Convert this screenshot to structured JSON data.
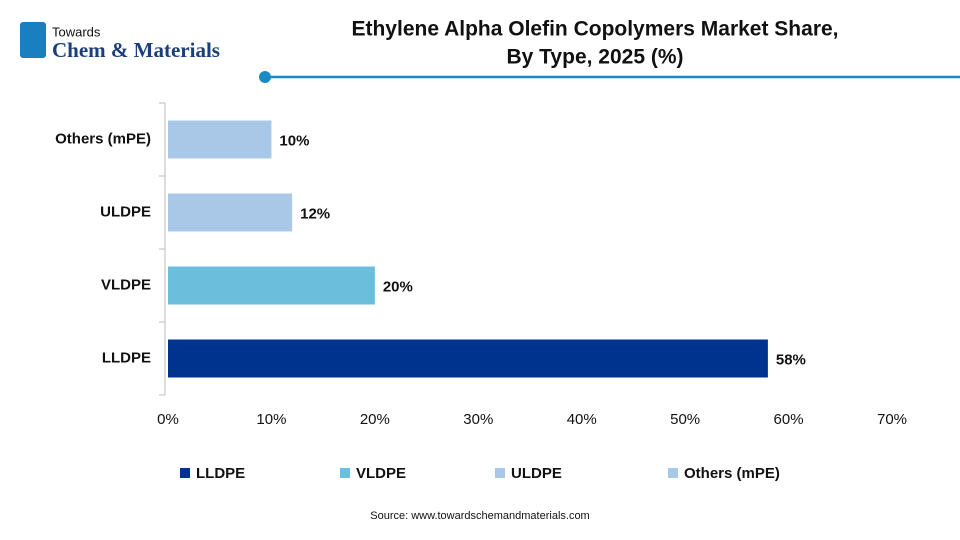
{
  "logo": {
    "line1": "Towards",
    "line2": "Chem & Materials"
  },
  "chart_data": {
    "type": "bar",
    "orientation": "horizontal",
    "title": [
      "Ethylene Alpha Olefin Copolymers Market Share,",
      "By Type, 2025 (%)"
    ],
    "categories": [
      "LLDPE",
      "VLDPE",
      "ULDPE",
      "Others (mPE)"
    ],
    "values": [
      58,
      20,
      12,
      10
    ],
    "value_labels": [
      "58%",
      "20%",
      "12%",
      "10%"
    ],
    "colors": [
      "#00338d",
      "#6bbfdc",
      "#a9c8e8",
      "#a9c8e8"
    ],
    "xlim": [
      0,
      70
    ],
    "xticks": [
      {
        "value": 0,
        "label": "0%"
      },
      {
        "value": 10,
        "label": "10%"
      },
      {
        "value": 20,
        "label": "20%"
      },
      {
        "value": 30,
        "label": "30%"
      },
      {
        "value": 40,
        "label": "40%"
      },
      {
        "value": 50,
        "label": "50%"
      },
      {
        "value": 60,
        "label": "60%"
      },
      {
        "value": 70,
        "label": "70%"
      }
    ],
    "grid": false,
    "legend": "bottom",
    "source": "Source: www.towardschemandmaterials.com"
  }
}
